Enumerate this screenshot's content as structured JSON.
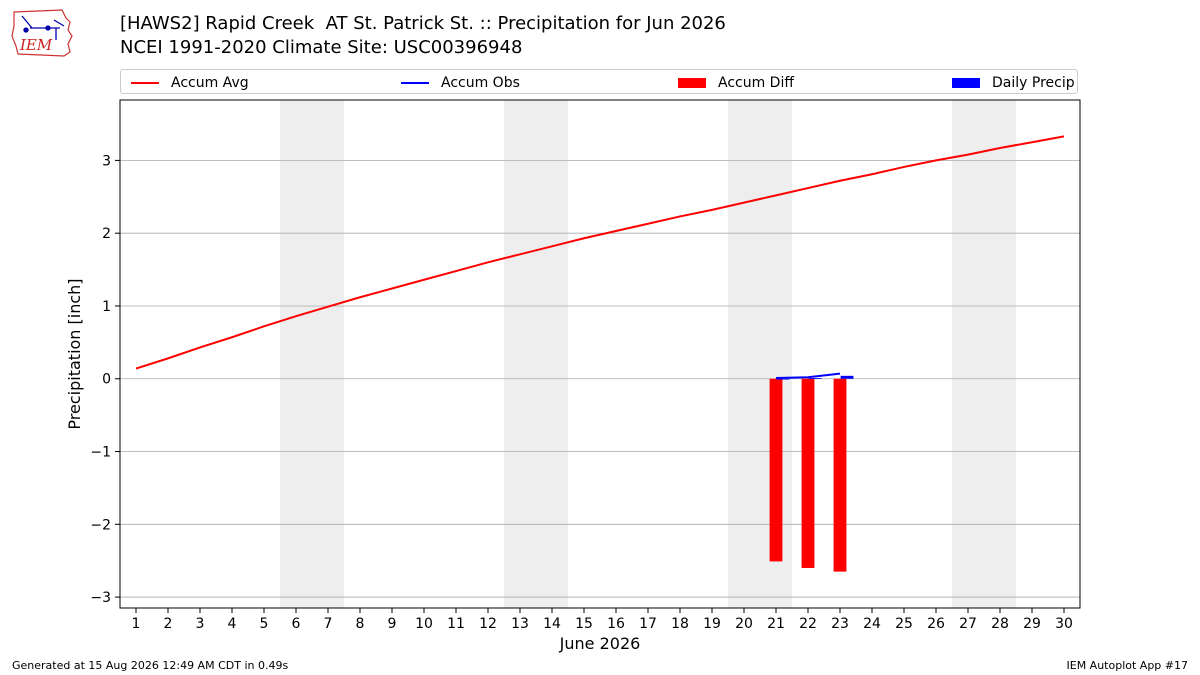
{
  "header": {
    "title_line1": "[HAWS2] Rapid Creek  AT St. Patrick St. :: Precipitation for Jun 2026",
    "title_line2": "NCEI 1991-2020 Climate Site: USC00396948",
    "logo_text": "IEM"
  },
  "legend": {
    "accum_avg": "Accum Avg",
    "accum_obs": "Accum Obs",
    "accum_diff": "Accum Diff",
    "daily_precip": "Daily Precip",
    "position": "top"
  },
  "colors": {
    "accum_avg": "#ff0000",
    "accum_obs": "#0000ff",
    "accum_diff": "#ff0000",
    "daily_precip": "#0000ff",
    "weekend_shade": "#eeeeee",
    "grid": "#aaaaaa"
  },
  "chart_data": {
    "type": "bar",
    "title": "[HAWS2] Rapid Creek  AT St. Patrick St. :: Precipitation for Jun 2026",
    "xlabel": "June 2026",
    "ylabel": "Precipitation [inch]",
    "x": [
      1,
      2,
      3,
      4,
      5,
      6,
      7,
      8,
      9,
      10,
      11,
      12,
      13,
      14,
      15,
      16,
      17,
      18,
      19,
      20,
      21,
      22,
      23,
      24,
      25,
      26,
      27,
      28,
      29,
      30
    ],
    "xlim": [
      0.5,
      30.5
    ],
    "ylim": [
      -3.15,
      3.83
    ],
    "yticks": [
      3,
      2,
      1,
      0,
      -1,
      -2,
      -3
    ],
    "ytick_labels": [
      "3",
      "2",
      "1",
      "0",
      "−1",
      "−2",
      "−3"
    ],
    "grid": "y",
    "weekend_spans": [
      [
        5.5,
        7.5
      ],
      [
        12.5,
        14.5
      ],
      [
        19.5,
        21.5
      ],
      [
        26.5,
        28.5
      ]
    ],
    "series": [
      {
        "name": "Accum Avg",
        "type": "line",
        "x": [
          1,
          2,
          3,
          4,
          5,
          6,
          7,
          8,
          9,
          10,
          11,
          12,
          13,
          14,
          15,
          16,
          17,
          18,
          19,
          20,
          21,
          22,
          23,
          24,
          25,
          26,
          27,
          28,
          29,
          30
        ],
        "values": [
          0.14,
          0.28,
          0.43,
          0.57,
          0.72,
          0.86,
          0.99,
          1.12,
          1.24,
          1.36,
          1.48,
          1.6,
          1.71,
          1.82,
          1.93,
          2.03,
          2.13,
          2.23,
          2.32,
          2.42,
          2.52,
          2.62,
          2.72,
          2.81,
          2.91,
          3.0,
          3.08,
          3.17,
          3.25,
          3.33
        ]
      },
      {
        "name": "Accum Obs",
        "type": "line",
        "x": [
          21,
          22,
          23
        ],
        "values": [
          0.01,
          0.02,
          0.07
        ]
      },
      {
        "name": "Accum Diff",
        "type": "bar",
        "x": [
          21,
          22,
          23
        ],
        "values": [
          -2.51,
          -2.6,
          -2.65
        ]
      },
      {
        "name": "Daily Precip",
        "type": "bar",
        "x": [
          21,
          22,
          23
        ],
        "values": [
          0.0,
          0.01,
          0.04
        ]
      }
    ]
  },
  "footer": {
    "left": "Generated at 15 Aug 2026 12:49 AM CDT in 0.49s",
    "right": "IEM Autoplot App #17"
  }
}
